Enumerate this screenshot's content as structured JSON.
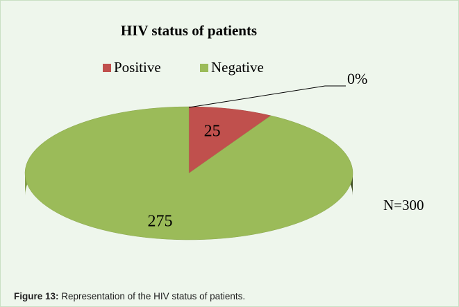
{
  "chart_data": {
    "type": "pie3d",
    "title": "HIV status of patients",
    "categories": [
      "Positive",
      "Negative"
    ],
    "values": [
      25,
      275
    ],
    "colors": [
      "#c0504d",
      "#9bbb59"
    ],
    "annotations": [
      "0%",
      "N=300"
    ]
  },
  "caption": {
    "label": "Figure 13:",
    "text": "Representation of the HIV status of patients."
  }
}
